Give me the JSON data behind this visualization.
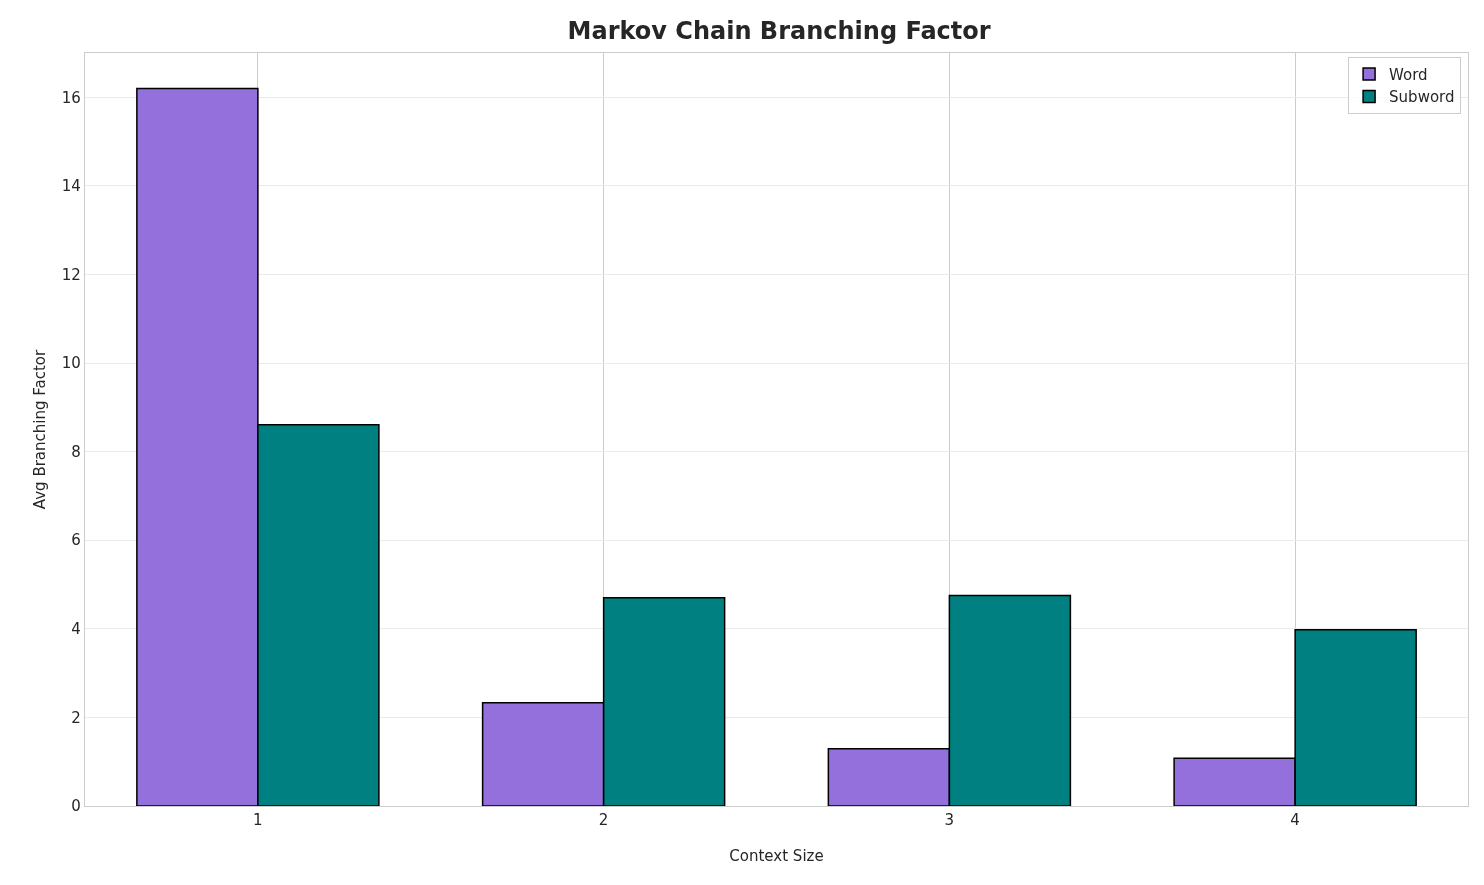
{
  "chart_data": {
    "type": "bar",
    "title": "Markov Chain Branching Factor",
    "xlabel": "Context Size",
    "ylabel": "Avg Branching Factor",
    "categories": [
      "1",
      "2",
      "3",
      "4"
    ],
    "series": [
      {
        "name": "Word",
        "color": "#9370db",
        "values": [
          16.2,
          2.33,
          1.29,
          1.08
        ]
      },
      {
        "name": "Subword",
        "color": "#008080",
        "values": [
          8.61,
          4.7,
          4.75,
          3.98
        ]
      }
    ],
    "ylim": [
      0,
      17
    ],
    "yticks": [
      0,
      2,
      4,
      6,
      8,
      10,
      12,
      14,
      16
    ],
    "grid": true,
    "legend": "top right"
  }
}
